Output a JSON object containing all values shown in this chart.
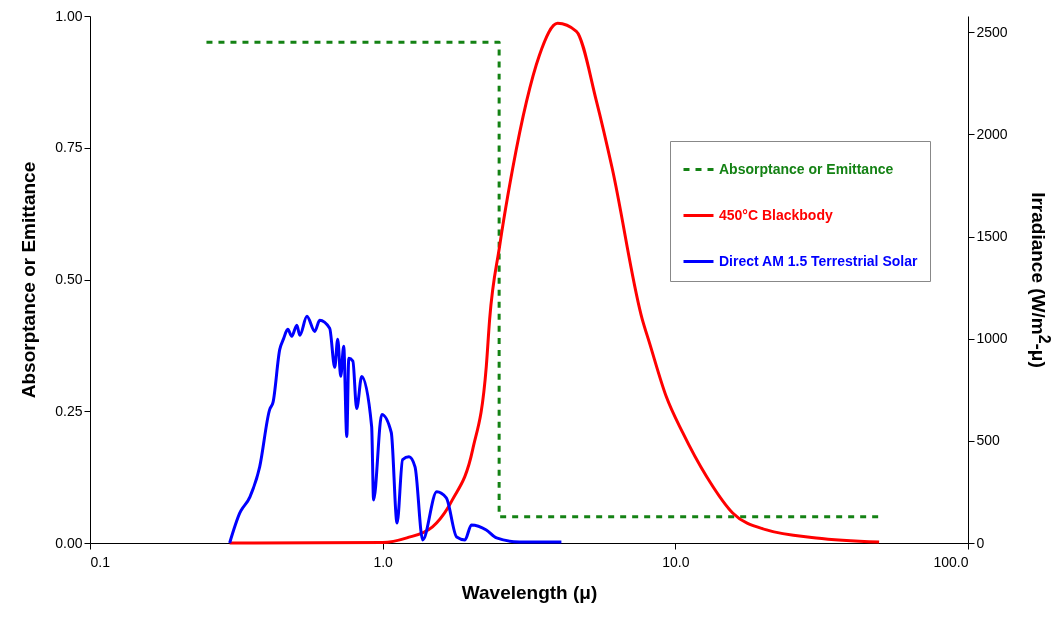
{
  "chart_data": {
    "type": "line",
    "xlabel": "Wavelength (μ)",
    "ylabel": "Absorptance or Emittance",
    "y2label": "Irradiance (W/m$^{2}$-μ)",
    "log": "x",
    "grid": false,
    "legend": "top right",
    "marker": "none",
    "xlim": [
      0.1,
      100
    ],
    "xticks": [
      {
        "value": 0.1,
        "label": "0.1"
      },
      {
        "value": 1,
        "label": "1.0"
      },
      {
        "value": 10,
        "label": "10.0"
      },
      {
        "value": 100,
        "label": "100.0"
      }
    ],
    "ylim": [
      0,
      1
    ],
    "yticks": [
      {
        "value": 0,
        "label": "0.00"
      },
      {
        "value": 0.25,
        "label": "0.25"
      },
      {
        "value": 0.5,
        "label": "0.50"
      },
      {
        "value": 0.75,
        "label": "0.75"
      },
      {
        "value": 1,
        "label": "1.00"
      }
    ],
    "y2lim": [
      0,
      2580
    ],
    "y2ticks": [
      0,
      500,
      1000,
      1500,
      2000,
      2500
    ],
    "series": [
      {
        "name": "Absorptance or Emittance",
        "color": "#148214",
        "line_style": "dashed",
        "x": [
          0.25,
          2.5,
          2.5,
          50
        ],
        "values": [
          0.95,
          0.95,
          0.05,
          0.05
        ]
      },
      {
        "name": "450°C Blackbody",
        "color": "#ff0000",
        "line_style": "solid",
        "axis": "y2",
        "x": [
          0.3,
          1.0,
          1.21,
          1.48,
          1.73,
          2.03,
          2.26,
          2.32,
          2.51,
          2.78,
          3.1,
          3.43,
          3.96,
          4.59,
          5.38,
          6.09,
          7.71,
          8.15,
          9.31,
          10.6,
          12.8,
          15.7,
          20.5,
          30.3,
          49.7
        ],
        "values": [
          0,
          2,
          25,
          79,
          211,
          457,
          865,
          1095,
          1454,
          1832,
          2161,
          2387,
          2544,
          2505,
          2161,
          1832,
          1095,
          982,
          717,
          540,
          324,
          147,
          64,
          25,
          5
        ]
      },
      {
        "name": "Direct AM 1.5 Terrestrial Solar",
        "color": "#0000ff",
        "line_style": "solid",
        "axis": "y2",
        "x": [
          0.3,
          0.325,
          0.352,
          0.38,
          0.411,
          0.422,
          0.445,
          0.458,
          0.474,
          0.489,
          0.509,
          0.521,
          0.551,
          0.586,
          0.609,
          0.659,
          0.686,
          0.702,
          0.719,
          0.736,
          0.754,
          0.766,
          0.791,
          0.815,
          0.848,
          0.917,
          0.931,
          0.993,
          1.07,
          1.12,
          1.17,
          1.23,
          1.29,
          1.37,
          1.53,
          1.65,
          1.79,
          1.91,
          2.01,
          2.26,
          2.45,
          2.94,
          4.08
        ],
        "values": [
          0,
          147,
          226,
          373,
          653,
          688,
          948,
          998,
          1046,
          1012,
          1066,
          1017,
          1110,
          1036,
          1090,
          1051,
          860,
          998,
          816,
          963,
          521,
          904,
          890,
          658,
          815,
          570,
          211,
          629,
          541,
          98,
          408,
          422,
          373,
          15,
          251,
          221,
          29,
          15,
          88,
          64,
          25,
          5,
          5
        ]
      }
    ]
  }
}
